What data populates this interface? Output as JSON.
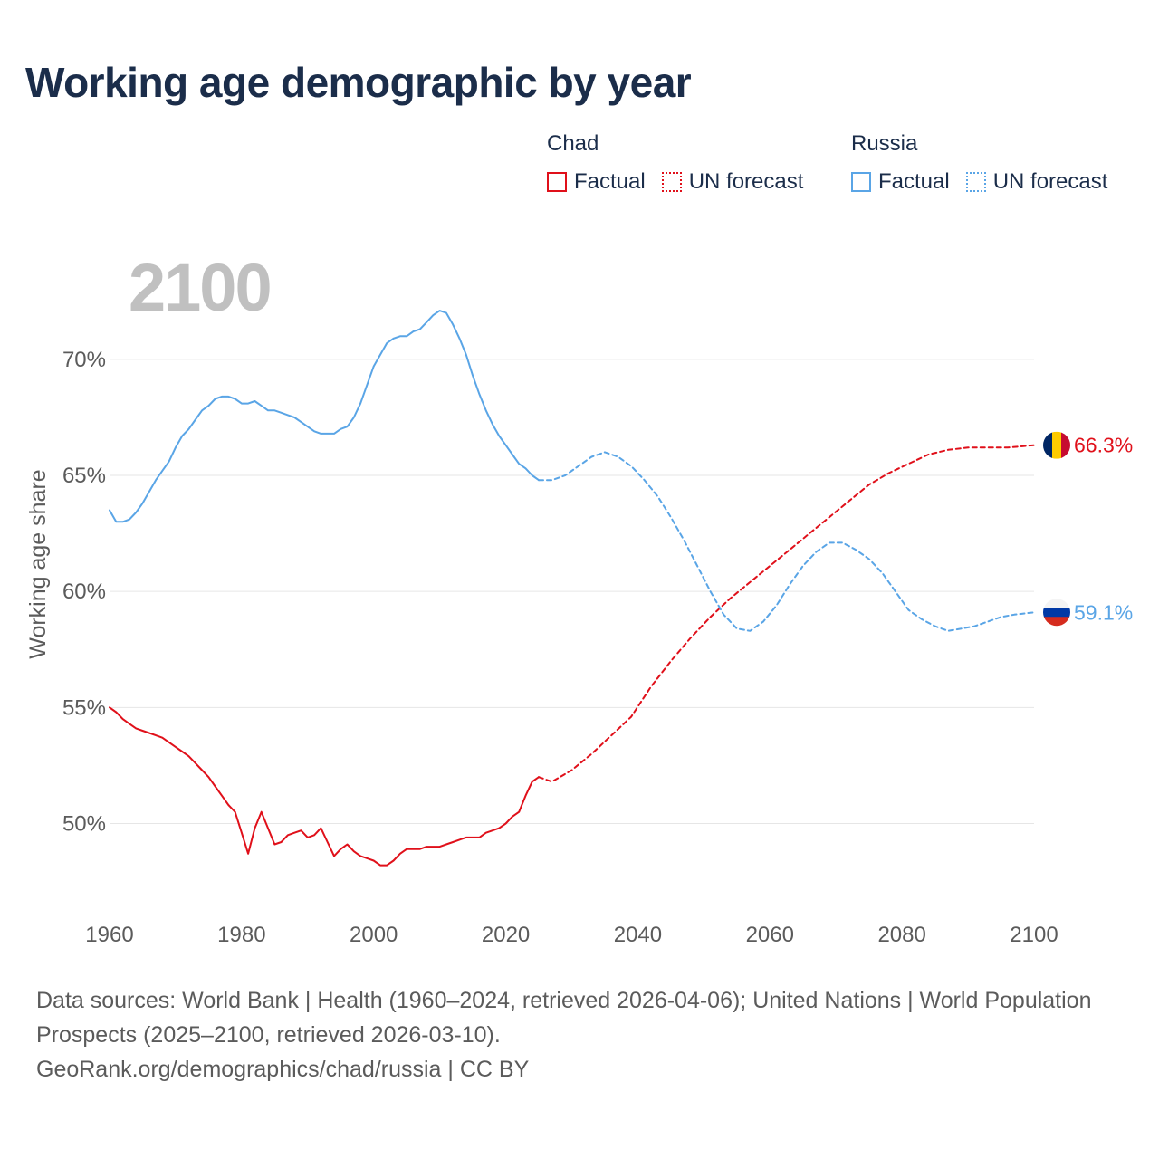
{
  "title": "Working age demographic by year",
  "legend": {
    "groups": [
      {
        "name": "Chad",
        "color": "#e0101a",
        "factual_label": "Factual",
        "forecast_label": "UN forecast"
      },
      {
        "name": "Russia",
        "color": "#5aa5e6",
        "factual_label": "Factual",
        "forecast_label": "UN forecast"
      }
    ]
  },
  "year_label": "2100",
  "footer": {
    "sources": "Data sources: World Bank | Health (1960–2024, retrieved 2026-04-06); United Nations | World Population Prospects (2025–2100, retrieved 2026-03-10).",
    "credit": "GeoRank.org/demographics/chad/russia | CC BY"
  },
  "flags": {
    "chad": {
      "colors": [
        "#002664",
        "#fecb00",
        "#c60c30"
      ],
      "icon": "chad-flag-icon"
    },
    "russia": {
      "colors": [
        "#f4f4f4",
        "#0039a6",
        "#d52b1e"
      ],
      "icon": "russia-flag-icon"
    }
  },
  "chart_data": {
    "type": "line",
    "title": "Working age demographic by year",
    "xlabel": "",
    "ylabel": "Working age share",
    "xlim": [
      1960,
      2100
    ],
    "ylim": [
      46,
      73
    ],
    "xticks": [
      1960,
      1980,
      2000,
      2020,
      2040,
      2060,
      2080,
      2100
    ],
    "xtick_labels": [
      "1960",
      "1980",
      "2000",
      "2020",
      "2040",
      "2060",
      "2080",
      "2100"
    ],
    "yticks": [
      50,
      55,
      60,
      65,
      70
    ],
    "ytick_labels": [
      "50%",
      "55%",
      "60%",
      "65%",
      "70%"
    ],
    "grid": true,
    "series": [
      {
        "name": "Chad",
        "type": "Factual",
        "color": "#e0101a",
        "dashed": false,
        "x": [
          1960,
          1961,
          1962,
          1963,
          1964,
          1965,
          1966,
          1967,
          1968,
          1969,
          1970,
          1971,
          1972,
          1973,
          1974,
          1975,
          1976,
          1977,
          1978,
          1979,
          1980,
          1981,
          1982,
          1983,
          1984,
          1985,
          1986,
          1987,
          1988,
          1989,
          1990,
          1991,
          1992,
          1993,
          1994,
          1995,
          1996,
          1997,
          1998,
          1999,
          2000,
          2001,
          2002,
          2003,
          2004,
          2005,
          2006,
          2007,
          2008,
          2009,
          2010,
          2011,
          2012,
          2013,
          2014,
          2015,
          2016,
          2017,
          2018,
          2019,
          2020,
          2021,
          2022,
          2023,
          2024,
          2025
        ],
        "y": [
          55.0,
          54.8,
          54.5,
          54.3,
          54.1,
          54.0,
          53.9,
          53.8,
          53.7,
          53.5,
          53.3,
          53.1,
          52.9,
          52.6,
          52.3,
          52.0,
          51.6,
          51.2,
          50.8,
          50.5,
          49.6,
          48.7,
          49.8,
          50.5,
          49.8,
          49.1,
          49.2,
          49.5,
          49.6,
          49.7,
          49.4,
          49.5,
          49.8,
          49.2,
          48.6,
          48.9,
          49.1,
          48.8,
          48.6,
          48.5,
          48.4,
          48.2,
          48.2,
          48.4,
          48.7,
          48.9,
          48.9,
          48.9,
          49.0,
          49.0,
          49.0,
          49.1,
          49.2,
          49.3,
          49.4,
          49.4,
          49.4,
          49.6,
          49.7,
          49.8,
          50.0,
          50.3,
          50.5,
          51.2,
          51.8,
          52.0
        ]
      },
      {
        "name": "Chad",
        "type": "UN forecast",
        "color": "#e0101a",
        "dashed": true,
        "x": [
          2025,
          2027,
          2030,
          2033,
          2036,
          2039,
          2042,
          2045,
          2048,
          2051,
          2054,
          2057,
          2060,
          2063,
          2066,
          2069,
          2072,
          2075,
          2078,
          2081,
          2084,
          2087,
          2090,
          2093,
          2096,
          2100
        ],
        "y": [
          52.0,
          51.8,
          52.3,
          53.0,
          53.8,
          54.6,
          55.9,
          57.0,
          58.0,
          58.9,
          59.7,
          60.4,
          61.1,
          61.8,
          62.5,
          63.2,
          63.9,
          64.6,
          65.1,
          65.5,
          65.9,
          66.1,
          66.2,
          66.2,
          66.2,
          66.3
        ]
      },
      {
        "name": "Russia",
        "type": "Factual",
        "color": "#5aa5e6",
        "dashed": false,
        "x": [
          1960,
          1961,
          1962,
          1963,
          1964,
          1965,
          1966,
          1967,
          1968,
          1969,
          1970,
          1971,
          1972,
          1973,
          1974,
          1975,
          1976,
          1977,
          1978,
          1979,
          1980,
          1981,
          1982,
          1983,
          1984,
          1985,
          1986,
          1987,
          1988,
          1989,
          1990,
          1991,
          1992,
          1993,
          1994,
          1995,
          1996,
          1997,
          1998,
          1999,
          2000,
          2001,
          2002,
          2003,
          2004,
          2005,
          2006,
          2007,
          2008,
          2009,
          2010,
          2011,
          2012,
          2013,
          2014,
          2015,
          2016,
          2017,
          2018,
          2019,
          2020,
          2021,
          2022,
          2023,
          2024,
          2025
        ],
        "y": [
          63.5,
          63.0,
          63.0,
          63.1,
          63.4,
          63.8,
          64.3,
          64.8,
          65.2,
          65.6,
          66.2,
          66.7,
          67.0,
          67.4,
          67.8,
          68.0,
          68.3,
          68.4,
          68.4,
          68.3,
          68.1,
          68.1,
          68.2,
          68.0,
          67.8,
          67.8,
          67.7,
          67.6,
          67.5,
          67.3,
          67.1,
          66.9,
          66.8,
          66.8,
          66.8,
          67.0,
          67.1,
          67.5,
          68.1,
          68.9,
          69.7,
          70.2,
          70.7,
          70.9,
          71.0,
          71.0,
          71.2,
          71.3,
          71.6,
          71.9,
          72.1,
          72.0,
          71.5,
          70.9,
          70.2,
          69.3,
          68.5,
          67.8,
          67.2,
          66.7,
          66.3,
          65.9,
          65.5,
          65.3,
          65.0,
          64.8
        ]
      },
      {
        "name": "Russia",
        "type": "UN forecast",
        "color": "#5aa5e6",
        "dashed": true,
        "x": [
          2025,
          2027,
          2029,
          2031,
          2033,
          2035,
          2037,
          2039,
          2041,
          2043,
          2045,
          2047,
          2049,
          2051,
          2053,
          2055,
          2057,
          2059,
          2061,
          2063,
          2065,
          2067,
          2069,
          2071,
          2073,
          2075,
          2077,
          2079,
          2081,
          2083,
          2085,
          2087,
          2089,
          2091,
          2093,
          2095,
          2097,
          2100
        ],
        "y": [
          64.8,
          64.8,
          65.0,
          65.4,
          65.8,
          66.0,
          65.8,
          65.4,
          64.8,
          64.1,
          63.2,
          62.2,
          61.1,
          60.0,
          59.0,
          58.4,
          58.3,
          58.7,
          59.4,
          60.3,
          61.1,
          61.7,
          62.1,
          62.1,
          61.8,
          61.4,
          60.8,
          60.0,
          59.2,
          58.8,
          58.5,
          58.3,
          58.4,
          58.5,
          58.7,
          58.9,
          59.0,
          59.1
        ]
      }
    ],
    "end_labels": [
      {
        "name": "Chad",
        "value": 66.3,
        "label": "66.3%",
        "color": "#e0101a"
      },
      {
        "name": "Russia",
        "value": 59.1,
        "label": "59.1%",
        "color": "#5aa5e6"
      }
    ]
  }
}
